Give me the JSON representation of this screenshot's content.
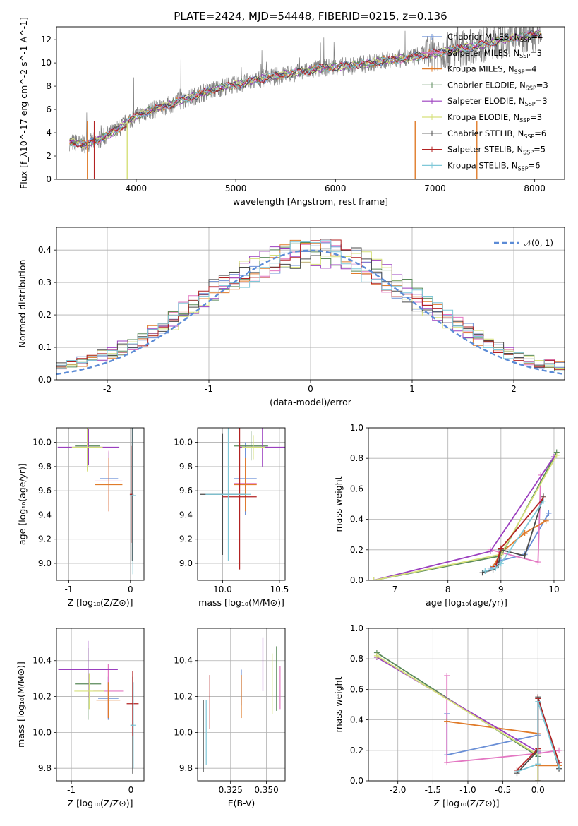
{
  "figure": {
    "title": "PLATE=2424, MJD=54448, FIBERID=0215, z=0.136"
  },
  "colors": {
    "Chabrier MILES": "#6a8fd6",
    "Salpeter MILES": "#e377c2",
    "Kroupa MILES": "#e07b2a",
    "Chabrier ELODIE": "#5a8a5a",
    "Salpeter ELODIE": "#9b3fbf",
    "Kroupa ELODIE": "#d6e07a",
    "Chabrier STELIB": "#4a4a4a",
    "Salpeter STELIB": "#b22222",
    "Kroupa STELIB": "#7fc8d8"
  },
  "chart_data": [
    {
      "id": "spectrum",
      "type": "line",
      "title": "PLATE=2424, MJD=54448, FIBERID=0215, z=0.136",
      "xlabel": "wavelength [Angstrom, rest frame]",
      "ylabel": "Flux [f_λ10^-17 erg cm^-2 s^-1 A^-1]",
      "xlim": [
        3200,
        8300
      ],
      "ylim": [
        0,
        13.1
      ],
      "xticks": [
        4000,
        5000,
        6000,
        7000,
        8000
      ],
      "yticks": [
        0,
        2,
        4,
        6,
        8,
        10,
        12
      ],
      "grid": false,
      "legend_position": "top-right",
      "legend": [
        {
          "label": "Chabrier MILES, N",
          "sub": "SSP",
          "tail": "=4"
        },
        {
          "label": "Salpeter MILES, N",
          "sub": "SSP",
          "tail": "=3"
        },
        {
          "label": "Kroupa MILES, N",
          "sub": "SSP",
          "tail": "=4"
        },
        {
          "label": "Chabrier ELODIE, N",
          "sub": "SSP",
          "tail": "=3"
        },
        {
          "label": "Salpeter ELODIE, N",
          "sub": "SSP",
          "tail": "=3"
        },
        {
          "label": "Kroupa ELODIE, N",
          "sub": "SSP",
          "tail": "=3"
        },
        {
          "label": "Chabrier STELIB, N",
          "sub": "SSP",
          "tail": "=6"
        },
        {
          "label": "Salpeter STELIB, N",
          "sub": "SSP",
          "tail": "=5"
        },
        {
          "label": "Kroupa STELIB, N",
          "sub": "SSP",
          "tail": "=6"
        }
      ],
      "continuum": {
        "x": [
          3330,
          3500,
          3650,
          3800,
          3950,
          4100,
          4300,
          4500,
          4700,
          4900,
          5100,
          5300,
          5500,
          5700,
          5900,
          6100,
          6300,
          6500,
          6700,
          6900,
          7100,
          7300,
          7500,
          7700,
          7900,
          8050
        ],
        "y": [
          3.2,
          3.0,
          3.5,
          4.2,
          5.2,
          5.8,
          6.3,
          6.9,
          7.5,
          8.0,
          8.3,
          8.7,
          9.0,
          9.3,
          9.6,
          9.7,
          9.9,
          10.2,
          10.4,
          10.7,
          11.0,
          11.3,
          11.6,
          12.0,
          12.3,
          12.5
        ]
      },
      "dips_to_zero": [
        3510,
        3580,
        3910,
        6800,
        7420
      ]
    },
    {
      "id": "residuals",
      "type": "line",
      "xlabel": "(data-model)/error",
      "ylabel": "Normed distribution",
      "xlim": [
        -2.5,
        2.5
      ],
      "ylim": [
        0,
        0.47
      ],
      "xticks": [
        -2,
        -1,
        0,
        1,
        2
      ],
      "yticks": [
        0.0,
        0.1,
        0.2,
        0.3,
        0.4
      ],
      "grid": true,
      "legend_position": "top-right",
      "legend": [
        "𝒩(0, 1)"
      ],
      "histograms": "per-model step histograms of normalized residuals"
    },
    {
      "id": "age-vs-Z",
      "type": "scatter",
      "xlabel": "Z [log₁₀(Z/Z⊙)]",
      "ylabel": "age  [log₁₀(age/yr)]",
      "xlim": [
        -1.2,
        0.22
      ],
      "ylim": [
        8.86,
        10.12
      ],
      "xticks": [
        -1,
        0
      ],
      "yticks": [
        9.0,
        9.2,
        9.4,
        9.6,
        9.8,
        10.0
      ],
      "grid": true,
      "points": [
        {
          "model": "Chabrier MILES",
          "x": -0.35,
          "xerr": 0.15,
          "y": 9.7,
          "yerr": 0.22
        },
        {
          "model": "Salpeter MILES",
          "x": -0.35,
          "xerr": 0.22,
          "y": 9.68,
          "yerr": 0.25
        },
        {
          "model": "Kroupa MILES",
          "x": -0.35,
          "xerr": 0.22,
          "y": 9.65,
          "yerr": 0.22
        },
        {
          "model": "Chabrier ELODIE",
          "x": -0.7,
          "xerr": 0.2,
          "y": 9.97,
          "yerr": 0.2
        },
        {
          "model": "Salpeter ELODIE",
          "x": -0.68,
          "xerr": 0.5,
          "y": 9.96,
          "yerr": 0.15
        },
        {
          "model": "Kroupa ELODIE",
          "x": -0.7,
          "xerr": 0.25,
          "y": 9.96,
          "yerr": 0.2
        },
        {
          "model": "Chabrier STELIB",
          "x": 0.03,
          "xerr": 0.02,
          "y": 9.57,
          "yerr": 0.55
        },
        {
          "model": "Salpeter STELIB",
          "x": 0.01,
          "xerr": 0.02,
          "y": 9.57,
          "yerr": 0.4
        },
        {
          "model": "Kroupa STELIB",
          "x": 0.04,
          "xerr": 0.05,
          "y": 9.56,
          "yerr": 0.65
        }
      ]
    },
    {
      "id": "age-vs-mass",
      "type": "scatter",
      "xlabel": "mass [log₁₀(M/M⊙)]",
      "xlim": [
        9.78,
        10.55
      ],
      "ylim": [
        8.86,
        10.12
      ],
      "xticks": [
        10.0,
        10.5
      ],
      "yticks": [
        9.0,
        9.2,
        9.4,
        9.6,
        9.8,
        10.0
      ],
      "grid": true,
      "points": [
        {
          "model": "Chabrier MILES",
          "x": 10.2,
          "xerr": 0.1,
          "y": 9.7,
          "yerr": 0.3
        },
        {
          "model": "Salpeter MILES",
          "x": 10.2,
          "xerr": 0.1,
          "y": 9.66,
          "yerr": 0.2
        },
        {
          "model": "Kroupa MILES",
          "x": 10.2,
          "xerr": 0.1,
          "y": 9.65,
          "yerr": 0.22
        },
        {
          "model": "Chabrier ELODIE",
          "x": 10.25,
          "xerr": 0.15,
          "y": 9.97,
          "yerr": 0.12
        },
        {
          "model": "Salpeter ELODIE",
          "x": 10.35,
          "xerr": 0.2,
          "y": 9.96,
          "yerr": 0.16
        },
        {
          "model": "Kroupa ELODIE",
          "x": 10.27,
          "xerr": 0.1,
          "y": 9.96,
          "yerr": 0.1
        },
        {
          "model": "Chabrier STELIB",
          "x": 10.0,
          "xerr": 0.2,
          "y": 9.57,
          "yerr": 0.5
        },
        {
          "model": "Salpeter STELIB",
          "x": 10.15,
          "xerr": 0.15,
          "y": 9.55,
          "yerr": 0.6
        },
        {
          "model": "Kroupa STELIB",
          "x": 10.05,
          "xerr": 0.2,
          "y": 9.57,
          "yerr": 0.55
        }
      ]
    },
    {
      "id": "weight-vs-age",
      "type": "line",
      "xlabel": "age  [log₁₀(age/yr)]",
      "ylabel": "mass weight",
      "xlim": [
        6.5,
        10.2
      ],
      "ylim": [
        0,
        1.0
      ],
      "xticks": [
        7,
        8,
        9,
        10
      ],
      "yticks": [
        0.0,
        0.2,
        0.4,
        0.6,
        0.8,
        1.0
      ],
      "grid": true,
      "series": [
        {
          "model": "Chabrier MILES",
          "x": [
            8.8,
            9.0,
            9.45,
            9.9
          ],
          "y": [
            0.08,
            0.13,
            0.17,
            0.44
          ]
        },
        {
          "model": "Salpeter MILES",
          "x": [
            8.8,
            9.7,
            9.75
          ],
          "y": [
            0.2,
            0.12,
            0.69
          ]
        },
        {
          "model": "Kroupa MILES",
          "x": [
            8.85,
            9.0,
            9.45,
            9.85
          ],
          "y": [
            0.09,
            0.18,
            0.31,
            0.39
          ]
        },
        {
          "model": "Chabrier ELODIE",
          "x": [
            6.6,
            9.0,
            10.05
          ],
          "y": [
            0.0,
            0.16,
            0.84
          ]
        },
        {
          "model": "Salpeter ELODIE",
          "x": [
            6.6,
            8.8,
            10.0
          ],
          "y": [
            0.0,
            0.19,
            0.81
          ]
        },
        {
          "model": "Kroupa ELODIE",
          "x": [
            6.6,
            9.0,
            10.05
          ],
          "y": [
            0.0,
            0.17,
            0.82
          ]
        },
        {
          "model": "Chabrier STELIB",
          "x": [
            8.65,
            8.85,
            8.95,
            9.0,
            9.45,
            9.8
          ],
          "y": [
            0.05,
            0.07,
            0.1,
            0.2,
            0.16,
            0.55
          ]
        },
        {
          "model": "Salpeter STELIB",
          "x": [
            8.9,
            9.0,
            9.8
          ],
          "y": [
            0.09,
            0.21,
            0.54
          ]
        },
        {
          "model": "Kroupa STELIB",
          "x": [
            8.7,
            8.9,
            9.0,
            9.8
          ],
          "y": [
            0.06,
            0.08,
            0.11,
            0.52
          ]
        }
      ]
    },
    {
      "id": "mass-vs-Z",
      "type": "scatter",
      "xlabel": "Z [log₁₀(Z/Z⊙)]",
      "ylabel": "mass [log₁₀(M/M⊙)]",
      "xlim": [
        -1.25,
        0.22
      ],
      "ylim": [
        9.73,
        10.58
      ],
      "xticks": [
        -1,
        0
      ],
      "yticks": [
        9.8,
        10.0,
        10.2,
        10.4
      ],
      "grid": true,
      "points": [
        {
          "model": "Chabrier MILES",
          "x": -0.38,
          "xerr": 0.17,
          "y": 10.19,
          "yerr": 0.12
        },
        {
          "model": "Salpeter MILES",
          "x": -0.38,
          "xerr": 0.25,
          "y": 10.23,
          "yerr": 0.15
        },
        {
          "model": "Kroupa MILES",
          "x": -0.38,
          "xerr": 0.2,
          "y": 10.18,
          "yerr": 0.1
        },
        {
          "model": "Chabrier ELODIE",
          "x": -0.72,
          "xerr": 0.22,
          "y": 10.27,
          "yerr": 0.2
        },
        {
          "model": "Salpeter ELODIE",
          "x": -0.72,
          "xerr": 0.5,
          "y": 10.35,
          "yerr": 0.16
        },
        {
          "model": "Kroupa ELODIE",
          "x": -0.7,
          "xerr": 0.25,
          "y": 10.23,
          "yerr": 0.1
        },
        {
          "model": "Chabrier STELIB",
          "x": 0.03,
          "xerr": 0.02,
          "y": 10.04,
          "yerr": 0.27
        },
        {
          "model": "Salpeter STELIB",
          "x": 0.03,
          "xerr": 0.1,
          "y": 10.16,
          "yerr": 0.18
        },
        {
          "model": "Kroupa STELIB",
          "x": 0.04,
          "xerr": 0.05,
          "y": 10.04,
          "yerr": 0.24
        }
      ]
    },
    {
      "id": "mass-vs-EBV",
      "type": "scatter",
      "xlabel": "E(B-V)",
      "xlim": [
        0.302,
        0.363
      ],
      "ylim": [
        9.73,
        10.58
      ],
      "xticks": [
        0.325,
        0.35
      ],
      "yticks": [
        9.8,
        10.0,
        10.2,
        10.4
      ],
      "grid": true,
      "points": [
        {
          "model": "Chabrier MILES",
          "x": 0.3325,
          "y": 10.25,
          "yerr": 0.1
        },
        {
          "model": "Salpeter MILES",
          "x": 0.3595,
          "y": 10.25,
          "yerr": 0.12
        },
        {
          "model": "Kroupa MILES",
          "x": 0.3325,
          "y": 10.2,
          "yerr": 0.12
        },
        {
          "model": "Chabrier ELODIE",
          "x": 0.357,
          "y": 10.3,
          "yerr": 0.18
        },
        {
          "model": "Salpeter ELODIE",
          "x": 0.3475,
          "y": 10.38,
          "yerr": 0.15
        },
        {
          "model": "Kroupa ELODIE",
          "x": 0.354,
          "y": 10.27,
          "yerr": 0.17
        },
        {
          "model": "Chabrier STELIB",
          "x": 0.306,
          "y": 9.98,
          "yerr": 0.2
        },
        {
          "model": "Salpeter STELIB",
          "x": 0.3105,
          "y": 10.17,
          "yerr": 0.15
        },
        {
          "model": "Kroupa STELIB",
          "x": 0.308,
          "y": 10.0,
          "yerr": 0.18
        }
      ]
    },
    {
      "id": "weight-vs-Z",
      "type": "line",
      "xlabel": "Z [log₁₀(Z/Z⊙)]",
      "ylabel": "mass weight",
      "xlim": [
        -2.42,
        0.38
      ],
      "ylim": [
        0,
        1.0
      ],
      "xticks": [
        -2.0,
        -1.5,
        -1.0,
        -0.5,
        0.0
      ],
      "yticks": [
        0.0,
        0.2,
        0.4,
        0.6,
        0.8,
        1.0
      ],
      "grid": true,
      "series": [
        {
          "model": "Chabrier MILES",
          "x": [
            -1.3,
            -1.3,
            0.0
          ],
          "y": [
            0.44,
            0.17,
            0.3
          ]
        },
        {
          "model": "Salpeter MILES",
          "x": [
            -1.3,
            -1.3,
            0.0,
            0.3
          ],
          "y": [
            0.69,
            0.12,
            0.18,
            0.2
          ]
        },
        {
          "model": "Kroupa MILES",
          "x": [
            -1.3,
            -1.3,
            0.0,
            0.0,
            0.3
          ],
          "y": [
            0.39,
            0.39,
            0.31,
            0.1,
            0.1
          ]
        },
        {
          "model": "Chabrier ELODIE",
          "x": [
            -2.3,
            0.0,
            0.0
          ],
          "y": [
            0.84,
            0.16,
            0.0
          ]
        },
        {
          "model": "Salpeter ELODIE",
          "x": [
            -2.3,
            0.0,
            0.0
          ],
          "y": [
            0.81,
            0.19,
            0.0
          ]
        },
        {
          "model": "Kroupa ELODIE",
          "x": [
            -2.3,
            0.0,
            0.0
          ],
          "y": [
            0.82,
            0.17,
            0.0
          ]
        },
        {
          "model": "Chabrier STELIB",
          "x": [
            -0.3,
            0.0,
            0.0,
            0.3
          ],
          "y": [
            0.05,
            0.2,
            0.55,
            0.08
          ]
        },
        {
          "model": "Salpeter STELIB",
          "x": [
            -0.3,
            0.0,
            0.0,
            0.3
          ],
          "y": [
            0.07,
            0.21,
            0.54,
            0.12
          ]
        },
        {
          "model": "Kroupa STELIB",
          "x": [
            -0.3,
            0.0,
            0.0,
            0.3
          ],
          "y": [
            0.06,
            0.11,
            0.52,
            0.09
          ]
        }
      ]
    }
  ]
}
